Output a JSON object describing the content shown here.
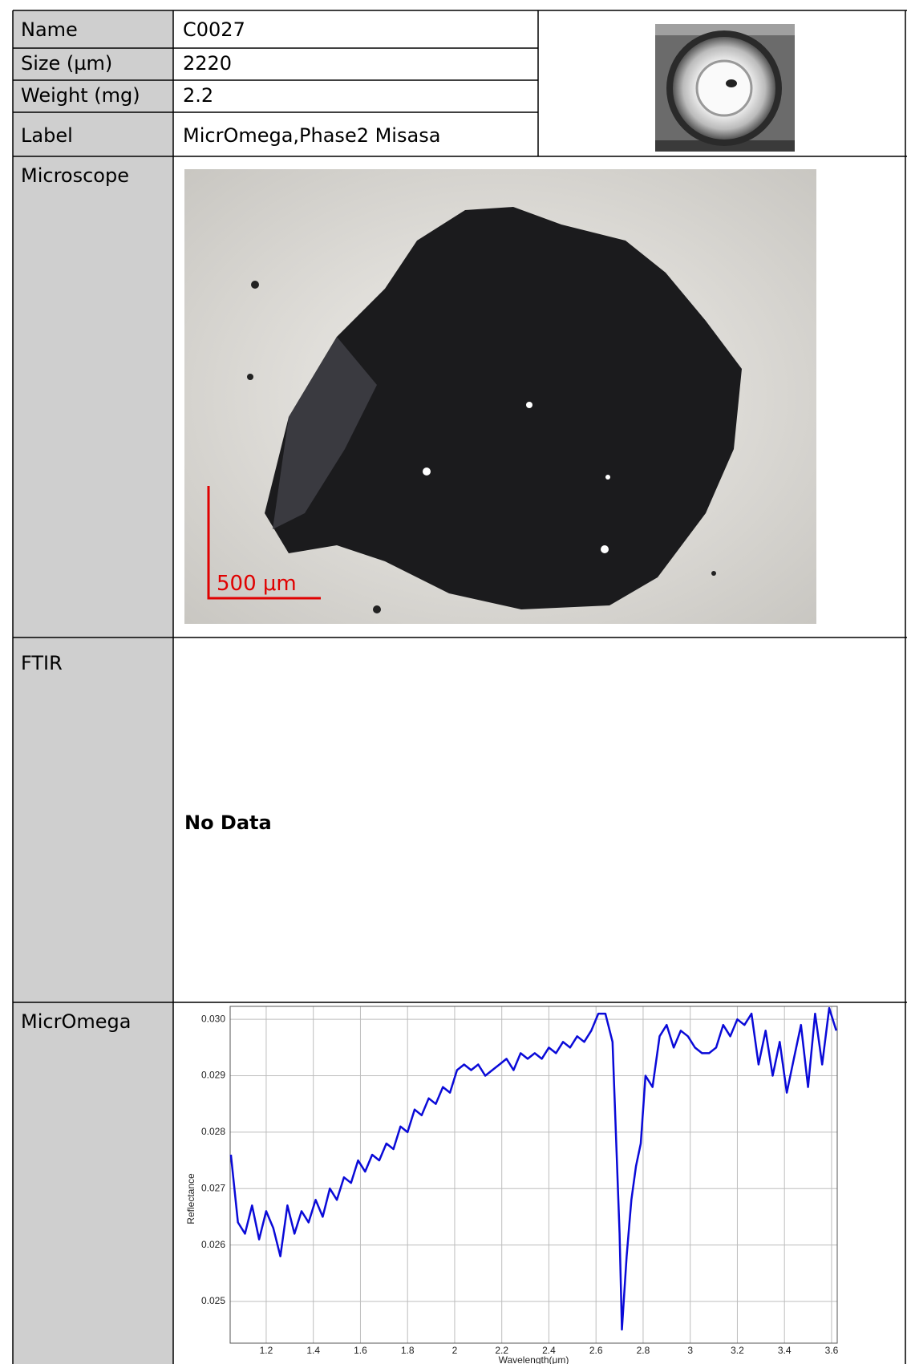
{
  "table": {
    "rows": [
      [
        "Name",
        "C0027"
      ],
      [
        "Size (µm)",
        "2220"
      ],
      [
        "Weight (mg)",
        "2.2"
      ],
      [
        "Label",
        "MicrOmega,Phase2 Misasa"
      ]
    ],
    "sections": [
      {
        "label": "Microscope",
        "scale_bar": "500 μm"
      },
      {
        "label": "FTIR",
        "content": "No Data"
      },
      {
        "label": "MicrOmega"
      }
    ]
  },
  "chart_data": {
    "type": "line",
    "color": "#0a0ad8",
    "grid": true,
    "xlabel": "Wavelength(μm)",
    "ylabel": "Reflectance",
    "xlim": [
      1.047,
      3.624
    ],
    "ylim": [
      0.02426,
      0.03023
    ],
    "xticks": [
      1.2,
      1.4,
      1.6,
      1.8,
      2,
      2.2,
      2.4,
      2.6,
      2.8,
      3,
      3.2,
      3.4,
      3.6
    ],
    "yticks": [
      0.025,
      0.026,
      0.027,
      0.028,
      0.029,
      {
        "value": 0.03,
        "label": "0.030"
      }
    ],
    "x": [
      1.05,
      1.08,
      1.11,
      1.14,
      1.17,
      1.2,
      1.23,
      1.26,
      1.29,
      1.32,
      1.35,
      1.38,
      1.41,
      1.44,
      1.47,
      1.5,
      1.53,
      1.56,
      1.59,
      1.62,
      1.65,
      1.68,
      1.71,
      1.74,
      1.77,
      1.8,
      1.83,
      1.86,
      1.89,
      1.92,
      1.95,
      1.98,
      2.01,
      2.04,
      2.07,
      2.1,
      2.13,
      2.16,
      2.19,
      2.22,
      2.25,
      2.28,
      2.31,
      2.34,
      2.37,
      2.4,
      2.43,
      2.46,
      2.49,
      2.52,
      2.55,
      2.58,
      2.61,
      2.64,
      2.67,
      2.7,
      2.71,
      2.73,
      2.75,
      2.77,
      2.79,
      2.81,
      2.84,
      2.87,
      2.9,
      2.93,
      2.96,
      2.99,
      3.02,
      3.05,
      3.08,
      3.11,
      3.14,
      3.17,
      3.2,
      3.23,
      3.26,
      3.29,
      3.32,
      3.35,
      3.38,
      3.41,
      3.44,
      3.47,
      3.5,
      3.53,
      3.56,
      3.59,
      3.62
    ],
    "values": [
      0.0276,
      0.0264,
      0.0262,
      0.0267,
      0.0261,
      0.0266,
      0.0263,
      0.0258,
      0.0267,
      0.0262,
      0.0266,
      0.0264,
      0.0268,
      0.0265,
      0.027,
      0.0268,
      0.0272,
      0.0271,
      0.0275,
      0.0273,
      0.0276,
      0.0275,
      0.0278,
      0.0277,
      0.0281,
      0.028,
      0.0284,
      0.0283,
      0.0286,
      0.0285,
      0.0288,
      0.0287,
      0.0291,
      0.0292,
      0.0291,
      0.0292,
      0.029,
      0.0291,
      0.0292,
      0.0293,
      0.0291,
      0.0294,
      0.0293,
      0.0294,
      0.0293,
      0.0295,
      0.0294,
      0.0296,
      0.0295,
      0.0297,
      0.0296,
      0.0298,
      0.0301,
      0.0301,
      0.0296,
      0.0262,
      0.0245,
      0.0258,
      0.0268,
      0.0274,
      0.0278,
      0.029,
      0.0288,
      0.0297,
      0.0299,
      0.0295,
      0.0298,
      0.0297,
      0.0295,
      0.0294,
      0.0294,
      0.0295,
      0.0299,
      0.0297,
      0.03,
      0.0299,
      0.0301,
      0.0292,
      0.0298,
      0.029,
      0.0296,
      0.0287,
      0.0293,
      0.0299,
      0.0288,
      0.0301,
      0.0292,
      0.0302,
      0.0298
    ]
  }
}
